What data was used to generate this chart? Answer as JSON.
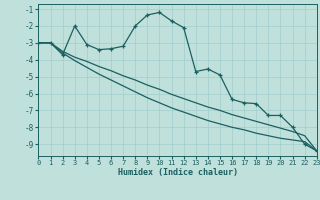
{
  "xlabel": "Humidex (Indice chaleur)",
  "bg_color": "#c0e0dc",
  "line_color": "#1a6060",
  "grid_color": "#a0cccc",
  "xlim": [
    0,
    23
  ],
  "ylim": [
    -9.7,
    -0.7
  ],
  "yticks": [
    -9,
    -8,
    -7,
    -6,
    -5,
    -4,
    -3,
    -2,
    -1
  ],
  "xticks": [
    0,
    1,
    2,
    3,
    4,
    5,
    6,
    7,
    8,
    9,
    10,
    11,
    12,
    13,
    14,
    15,
    16,
    17,
    18,
    19,
    20,
    21,
    22,
    23
  ],
  "line1_x": [
    0,
    1,
    2,
    3,
    4,
    5,
    6,
    7,
    8,
    9,
    10,
    11,
    12,
    13,
    14,
    15,
    16,
    17,
    18,
    19,
    20,
    21,
    22,
    23
  ],
  "line1_y": [
    -3.0,
    -3.0,
    -3.5,
    -3.85,
    -4.1,
    -4.4,
    -4.65,
    -4.95,
    -5.2,
    -5.5,
    -5.75,
    -6.05,
    -6.3,
    -6.55,
    -6.8,
    -7.0,
    -7.25,
    -7.45,
    -7.65,
    -7.85,
    -8.05,
    -8.25,
    -8.5,
    -9.4
  ],
  "line2_x": [
    0,
    1,
    2,
    3,
    4,
    5,
    6,
    7,
    8,
    9,
    10,
    11,
    12,
    13,
    14,
    15,
    16,
    17,
    18,
    19,
    20,
    21,
    22,
    23
  ],
  "line2_y": [
    -3.0,
    -3.0,
    -3.6,
    -4.05,
    -4.45,
    -4.85,
    -5.2,
    -5.55,
    -5.9,
    -6.25,
    -6.55,
    -6.85,
    -7.1,
    -7.35,
    -7.6,
    -7.8,
    -8.0,
    -8.15,
    -8.35,
    -8.5,
    -8.65,
    -8.75,
    -8.85,
    -9.4
  ],
  "line3_x": [
    0,
    1,
    2,
    3,
    4,
    5,
    6,
    7,
    8,
    9,
    10,
    11,
    12,
    13,
    14,
    15,
    16,
    17,
    18,
    19,
    20,
    21,
    22,
    23
  ],
  "line3_y": [
    -3.0,
    -3.0,
    -3.7,
    -2.0,
    -3.1,
    -3.4,
    -3.35,
    -3.2,
    -2.0,
    -1.35,
    -1.2,
    -1.7,
    -2.1,
    -4.7,
    -4.55,
    -4.9,
    -6.35,
    -6.55,
    -6.6,
    -7.3,
    -7.3,
    -8.0,
    -9.0,
    -9.4
  ]
}
